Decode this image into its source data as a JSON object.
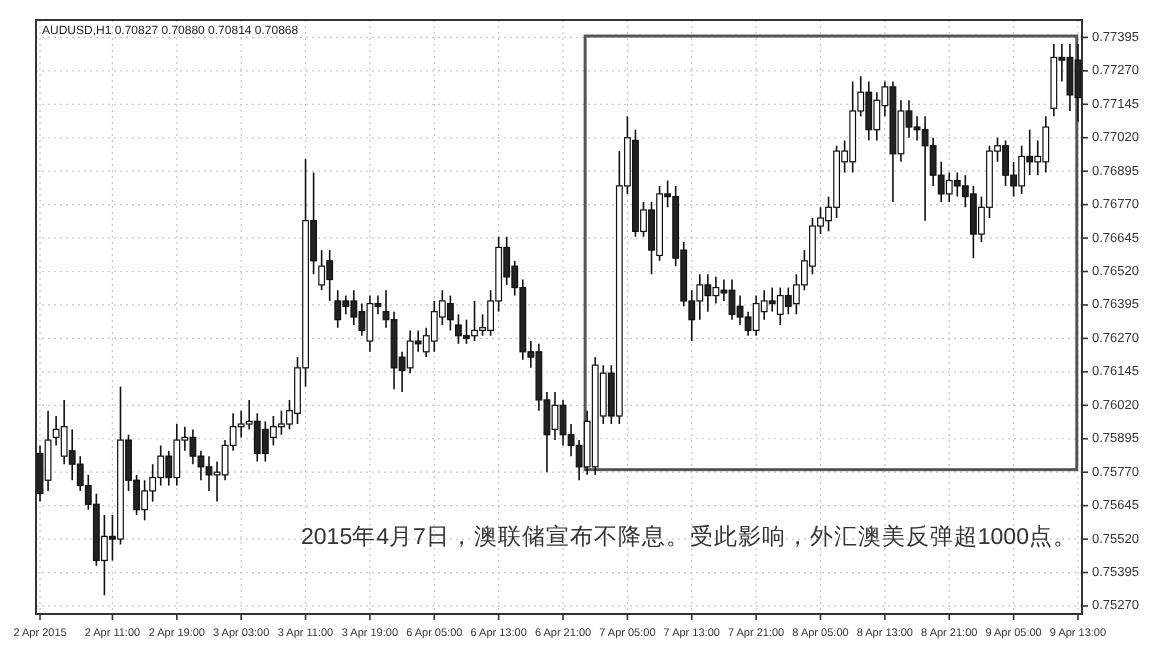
{
  "chart_data": {
    "type": "candlestick",
    "title": "AUDUSD,H1 0.70827 0.70880 0.70814 0.70868",
    "annotations": [
      "2015年4月7日，澳联储宣布不降息。受此影响，外汇澳美反弹超1000点。"
    ],
    "categories": [
      "2 Apr 2015",
      null,
      null,
      null,
      null,
      null,
      null,
      null,
      null,
      "2 Apr 11:00",
      null,
      null,
      null,
      null,
      null,
      null,
      null,
      "2 Apr 19:00",
      null,
      null,
      null,
      null,
      null,
      null,
      null,
      "3 Apr 03:00",
      null,
      null,
      null,
      null,
      null,
      null,
      null,
      "3 Apr 11:00",
      null,
      null,
      null,
      null,
      null,
      null,
      null,
      "3 Apr 19:00",
      null,
      null,
      null,
      null,
      null,
      null,
      null,
      "6 Apr 05:00",
      null,
      null,
      null,
      null,
      null,
      null,
      null,
      "6 Apr 13:00",
      null,
      null,
      null,
      null,
      null,
      null,
      null,
      "6 Apr 21:00",
      null,
      null,
      null,
      null,
      null,
      null,
      null,
      "7 Apr 05:00",
      null,
      null,
      null,
      null,
      null,
      null,
      null,
      "7 Apr 13:00",
      null,
      null,
      null,
      null,
      null,
      null,
      null,
      "7 Apr 21:00",
      null,
      null,
      null,
      null,
      null,
      null,
      null,
      "8 Apr 05:00",
      null,
      null,
      null,
      null,
      null,
      null,
      null,
      "8 Apr 13:00",
      null,
      null,
      null,
      null,
      null,
      null,
      null,
      "8 Apr 21:00",
      null,
      null,
      null,
      null,
      null,
      null,
      null,
      "9 Apr 05:00",
      null,
      null,
      null,
      null,
      null,
      null,
      null,
      "9 Apr 13:00"
    ],
    "ohlc": [
      [
        0.7584,
        0.7587,
        0.7566,
        0.7569
      ],
      [
        0.7574,
        0.76,
        0.757,
        0.7589
      ],
      [
        0.759,
        0.7598,
        0.7587,
        0.7593
      ],
      [
        0.7583,
        0.7604,
        0.758,
        0.7594
      ],
      [
        0.7585,
        0.7593,
        0.7574,
        0.758
      ],
      [
        0.758,
        0.7583,
        0.757,
        0.7572
      ],
      [
        0.7572,
        0.7576,
        0.7563,
        0.7565
      ],
      [
        0.7565,
        0.7569,
        0.7542,
        0.7544
      ],
      [
        0.7544,
        0.7561,
        0.7531,
        0.7553
      ],
      [
        0.7553,
        0.7561,
        0.7544,
        0.7552
      ],
      [
        0.7552,
        0.7609,
        0.755,
        0.7589
      ],
      [
        0.7589,
        0.7591,
        0.757,
        0.7574
      ],
      [
        0.7574,
        0.7576,
        0.7561,
        0.7563
      ],
      [
        0.7563,
        0.7574,
        0.7559,
        0.757
      ],
      [
        0.757,
        0.758,
        0.7566,
        0.7575
      ],
      [
        0.7575,
        0.7587,
        0.7572,
        0.7583
      ],
      [
        0.7583,
        0.7585,
        0.7572,
        0.7575
      ],
      [
        0.7575,
        0.7595,
        0.7572,
        0.7589
      ],
      [
        0.7589,
        0.7594,
        0.7585,
        0.759
      ],
      [
        0.759,
        0.7593,
        0.758,
        0.7583
      ],
      [
        0.7583,
        0.7585,
        0.7574,
        0.7579
      ],
      [
        0.7579,
        0.7583,
        0.757,
        0.7576
      ],
      [
        0.7576,
        0.7581,
        0.7566,
        0.7577
      ],
      [
        0.7576,
        0.7589,
        0.7574,
        0.7587
      ],
      [
        0.7587,
        0.7599,
        0.7585,
        0.7594
      ],
      [
        0.7594,
        0.76,
        0.759,
        0.7595
      ],
      [
        0.7595,
        0.7604,
        0.7593,
        0.7596
      ],
      [
        0.7596,
        0.7599,
        0.7581,
        0.7584
      ],
      [
        0.7593,
        0.7596,
        0.7581,
        0.7584
      ],
      [
        0.759,
        0.7598,
        0.7587,
        0.7594
      ],
      [
        0.7594,
        0.76,
        0.7591,
        0.7595
      ],
      [
        0.7595,
        0.7604,
        0.7593,
        0.76
      ],
      [
        0.7599,
        0.762,
        0.7595,
        0.7616
      ],
      [
        0.7616,
        0.7694,
        0.7609,
        0.7671
      ],
      [
        0.7671,
        0.7689,
        0.7651,
        0.7656
      ],
      [
        0.7647,
        0.766,
        0.7645,
        0.7654
      ],
      [
        0.7656,
        0.766,
        0.7641,
        0.7649
      ],
      [
        0.7641,
        0.7645,
        0.7631,
        0.7634
      ],
      [
        0.7641,
        0.7643,
        0.7636,
        0.7639
      ],
      [
        0.7641,
        0.7645,
        0.7632,
        0.7635
      ],
      [
        0.7637,
        0.764,
        0.7628,
        0.763
      ],
      [
        0.7626,
        0.7643,
        0.7622,
        0.764
      ],
      [
        0.764,
        0.7643,
        0.7636,
        0.7639
      ],
      [
        0.7637,
        0.7645,
        0.7631,
        0.7634
      ],
      [
        0.7634,
        0.7637,
        0.7608,
        0.7616
      ],
      [
        0.762,
        0.7622,
        0.7607,
        0.7615
      ],
      [
        0.7616,
        0.763,
        0.7614,
        0.7626
      ],
      [
        0.7626,
        0.763,
        0.7622,
        0.7625
      ],
      [
        0.7622,
        0.7631,
        0.762,
        0.7628
      ],
      [
        0.7626,
        0.7641,
        0.7622,
        0.7637
      ],
      [
        0.7635,
        0.7645,
        0.7632,
        0.7641
      ],
      [
        0.764,
        0.7643,
        0.763,
        0.7634
      ],
      [
        0.7632,
        0.7636,
        0.7625,
        0.7628
      ],
      [
        0.7628,
        0.7634,
        0.7625,
        0.7627
      ],
      [
        0.7628,
        0.7641,
        0.7626,
        0.763
      ],
      [
        0.763,
        0.7636,
        0.7628,
        0.7631
      ],
      [
        0.763,
        0.7645,
        0.7628,
        0.7641
      ],
      [
        0.7641,
        0.7665,
        0.7637,
        0.7661
      ],
      [
        0.7661,
        0.7665,
        0.7647,
        0.765
      ],
      [
        0.7654,
        0.7656,
        0.7643,
        0.7646
      ],
      [
        0.7646,
        0.7649,
        0.7619,
        0.7622
      ],
      [
        0.7622,
        0.7626,
        0.7616,
        0.762
      ],
      [
        0.7622,
        0.7625,
        0.76,
        0.7604
      ],
      [
        0.7604,
        0.7607,
        0.7577,
        0.7591
      ],
      [
        0.7593,
        0.7607,
        0.7589,
        0.7602
      ],
      [
        0.7602,
        0.7604,
        0.7587,
        0.7591
      ],
      [
        0.7591,
        0.7595,
        0.7583,
        0.7587
      ],
      [
        0.7587,
        0.7589,
        0.7574,
        0.7579
      ],
      [
        0.7579,
        0.76,
        0.7576,
        0.7596
      ],
      [
        0.7579,
        0.762,
        0.7576,
        0.7617
      ],
      [
        0.7598,
        0.7617,
        0.7595,
        0.7614
      ],
      [
        0.7614,
        0.7617,
        0.7595,
        0.7598
      ],
      [
        0.7598,
        0.7697,
        0.7595,
        0.7684
      ],
      [
        0.7684,
        0.771,
        0.7681,
        0.7702
      ],
      [
        0.7701,
        0.7705,
        0.7665,
        0.7667
      ],
      [
        0.7667,
        0.7678,
        0.7665,
        0.7675
      ],
      [
        0.7675,
        0.7678,
        0.7651,
        0.766
      ],
      [
        0.7658,
        0.7684,
        0.7656,
        0.7681
      ],
      [
        0.7681,
        0.7686,
        0.7676,
        0.768
      ],
      [
        0.768,
        0.7684,
        0.7654,
        0.7657
      ],
      [
        0.766,
        0.7663,
        0.7639,
        0.7641
      ],
      [
        0.7641,
        0.7645,
        0.7626,
        0.7634
      ],
      [
        0.7641,
        0.7651,
        0.7634,
        0.7647
      ],
      [
        0.7647,
        0.7651,
        0.7637,
        0.7643
      ],
      [
        0.7643,
        0.765,
        0.764,
        0.7646
      ],
      [
        0.7645,
        0.7649,
        0.7641,
        0.7644
      ],
      [
        0.7645,
        0.7649,
        0.7634,
        0.7636
      ],
      [
        0.7639,
        0.7643,
        0.7632,
        0.7635
      ],
      [
        0.7635,
        0.7637,
        0.7628,
        0.763
      ],
      [
        0.763,
        0.7643,
        0.7628,
        0.764
      ],
      [
        0.7637,
        0.7645,
        0.7634,
        0.7641
      ],
      [
        0.7641,
        0.7646,
        0.7637,
        0.764
      ],
      [
        0.7636,
        0.7646,
        0.7632,
        0.7643
      ],
      [
        0.7643,
        0.7646,
        0.7636,
        0.7639
      ],
      [
        0.764,
        0.7651,
        0.7636,
        0.7647
      ],
      [
        0.7647,
        0.766,
        0.7645,
        0.7656
      ],
      [
        0.7654,
        0.7672,
        0.7651,
        0.7669
      ],
      [
        0.7669,
        0.7676,
        0.7666,
        0.7672
      ],
      [
        0.7671,
        0.768,
        0.7667,
        0.7676
      ],
      [
        0.7676,
        0.7699,
        0.7672,
        0.7697
      ],
      [
        0.7693,
        0.7701,
        0.7689,
        0.7697
      ],
      [
        0.7693,
        0.7723,
        0.7689,
        0.7712
      ],
      [
        0.7712,
        0.7725,
        0.771,
        0.7719
      ],
      [
        0.7719,
        0.7723,
        0.7701,
        0.7705
      ],
      [
        0.7705,
        0.7719,
        0.7701,
        0.7716
      ],
      [
        0.7714,
        0.7723,
        0.771,
        0.7721
      ],
      [
        0.7721,
        0.7723,
        0.7678,
        0.7696
      ],
      [
        0.7696,
        0.7716,
        0.7693,
        0.7712
      ],
      [
        0.7712,
        0.7716,
        0.7702,
        0.7706
      ],
      [
        0.7706,
        0.771,
        0.7701,
        0.7705
      ],
      [
        0.7705,
        0.771,
        0.7671,
        0.7699
      ],
      [
        0.7699,
        0.7702,
        0.7684,
        0.7688
      ],
      [
        0.7688,
        0.7693,
        0.7678,
        0.7681
      ],
      [
        0.7681,
        0.7689,
        0.7678,
        0.7686
      ],
      [
        0.7686,
        0.7689,
        0.768,
        0.7684
      ],
      [
        0.7684,
        0.7688,
        0.7676,
        0.768
      ],
      [
        0.7681,
        0.7684,
        0.7657,
        0.7666
      ],
      [
        0.7666,
        0.768,
        0.7663,
        0.7676
      ],
      [
        0.7676,
        0.7699,
        0.7672,
        0.7697
      ],
      [
        0.7697,
        0.7702,
        0.7693,
        0.7699
      ],
      [
        0.7699,
        0.7701,
        0.7684,
        0.7688
      ],
      [
        0.7688,
        0.7693,
        0.768,
        0.7684
      ],
      [
        0.7684,
        0.7699,
        0.7681,
        0.7695
      ],
      [
        0.7695,
        0.7705,
        0.7688,
        0.7693
      ],
      [
        0.7693,
        0.7701,
        0.7688,
        0.7695
      ],
      [
        0.7693,
        0.771,
        0.7689,
        0.7706
      ],
      [
        0.7713,
        0.7737,
        0.771,
        0.7732
      ],
      [
        0.7732,
        0.7737,
        0.7723,
        0.7731
      ],
      [
        0.7732,
        0.7737,
        0.7712,
        0.7718
      ],
      [
        0.7731,
        0.7737,
        0.7708,
        0.7717
      ]
    ],
    "ylim": [
      0.7524,
      0.7746
    ],
    "yticks": [
      {
        "value": 0.7527,
        "label": "0.75270"
      },
      0.75395,
      {
        "value": 0.7552,
        "label": "0.75520"
      },
      0.75645,
      {
        "value": 0.7577,
        "label": "0.75770"
      },
      0.75895,
      {
        "value": 0.7602,
        "label": "0.76020"
      },
      0.76145,
      {
        "value": 0.7627,
        "label": "0.76270"
      },
      0.76395,
      {
        "value": 0.7652,
        "label": "0.76520"
      },
      0.76645,
      {
        "value": 0.7677,
        "label": "0.76770"
      },
      0.76895,
      {
        "value": 0.7702,
        "label": "0.77020"
      },
      0.77145,
      {
        "value": 0.7727,
        "label": "0.77270"
      },
      0.77395
    ],
    "grid": true
  }
}
